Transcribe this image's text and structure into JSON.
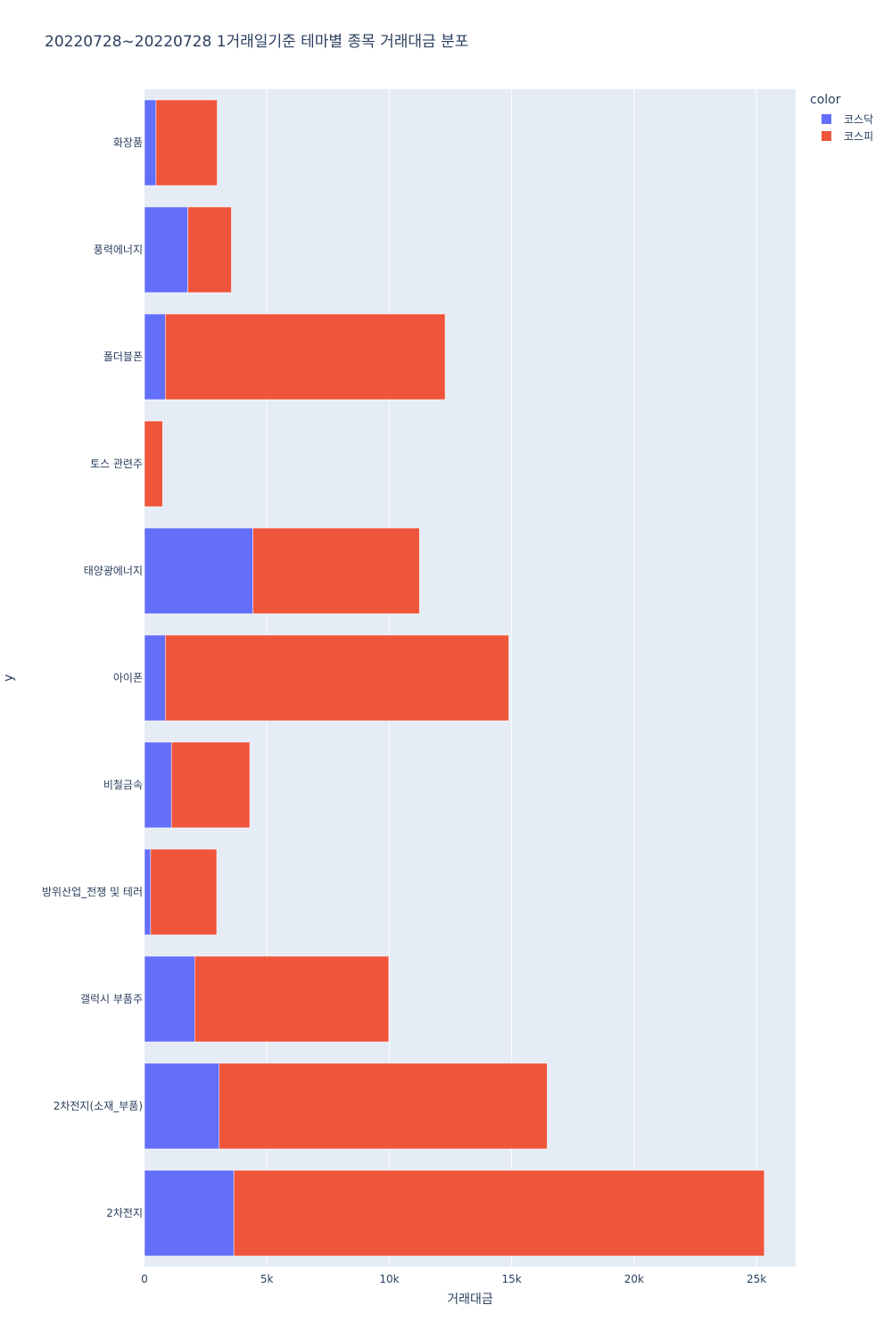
{
  "chart_data": {
    "type": "bar",
    "orientation": "horizontal",
    "barmode": "stack",
    "title": "20220728~20220728 1거래일기준 테마별 종목 거래대금 분포",
    "xlabel": "거래대금",
    "ylabel": "y",
    "xlim": [
      0,
      26600
    ],
    "x_ticks": [
      0,
      5000,
      10000,
      15000,
      20000,
      25000
    ],
    "x_tick_labels": [
      "0",
      "5k",
      "10k",
      "15k",
      "20k",
      "25k"
    ],
    "grid": true,
    "legend_title": "color",
    "legend_position": "top-right",
    "categories": [
      "화장품",
      "풍력에너지",
      "폴더블폰",
      "토스 관련주",
      "태양광에너지",
      "아이폰",
      "비철금속",
      "방위산업_전쟁 및 테러",
      "갤럭시 부품주",
      "2차전지(소재_부품)",
      "2차전지"
    ],
    "series": [
      {
        "name": "코스닥",
        "color": "#636efa",
        "values": [
          470,
          1770,
          850,
          0,
          4430,
          850,
          1100,
          250,
          2050,
          3050,
          3650
        ]
      },
      {
        "name": "코스피",
        "color": "#ef553b",
        "values": [
          2500,
          1780,
          11430,
          740,
          6800,
          14030,
          3200,
          2700,
          7930,
          13400,
          21670
        ]
      }
    ]
  }
}
